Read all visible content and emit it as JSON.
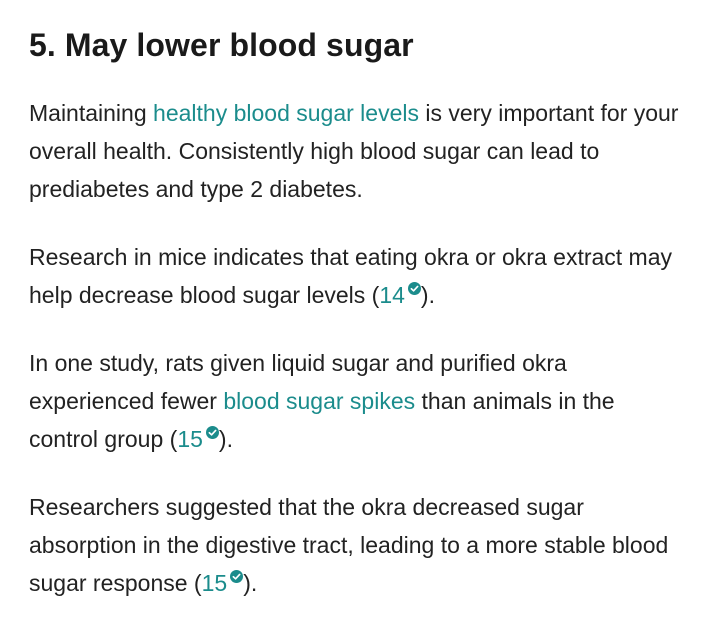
{
  "article": {
    "heading": "5. May lower blood sugar",
    "p1": {
      "pre": "Maintaining ",
      "link": "healthy blood sugar levels",
      "post": " is very important for your overall health. Consistently high blood sugar can lead to prediabetes and type 2 diabetes."
    },
    "p2": {
      "pre": "Research in mice indicates that eating okra or okra extract may help decrease blood sugar levels (",
      "cite": "14",
      "post": ")."
    },
    "p3": {
      "pre": "In one study, rats given liquid sugar and purified okra experienced fewer ",
      "link": "blood sugar spikes",
      "mid": " than animals in the control group (",
      "cite": "15",
      "post": ")."
    },
    "p4": {
      "pre": "Researchers suggested that the okra decreased sugar absorption in the digestive tract, leading to a more stable blood sugar response (",
      "cite": "15",
      "post": ")."
    }
  },
  "icons": {
    "citation_badge": "verified-check-icon"
  },
  "colors": {
    "link": "#1b8c8c",
    "text": "#222222"
  }
}
